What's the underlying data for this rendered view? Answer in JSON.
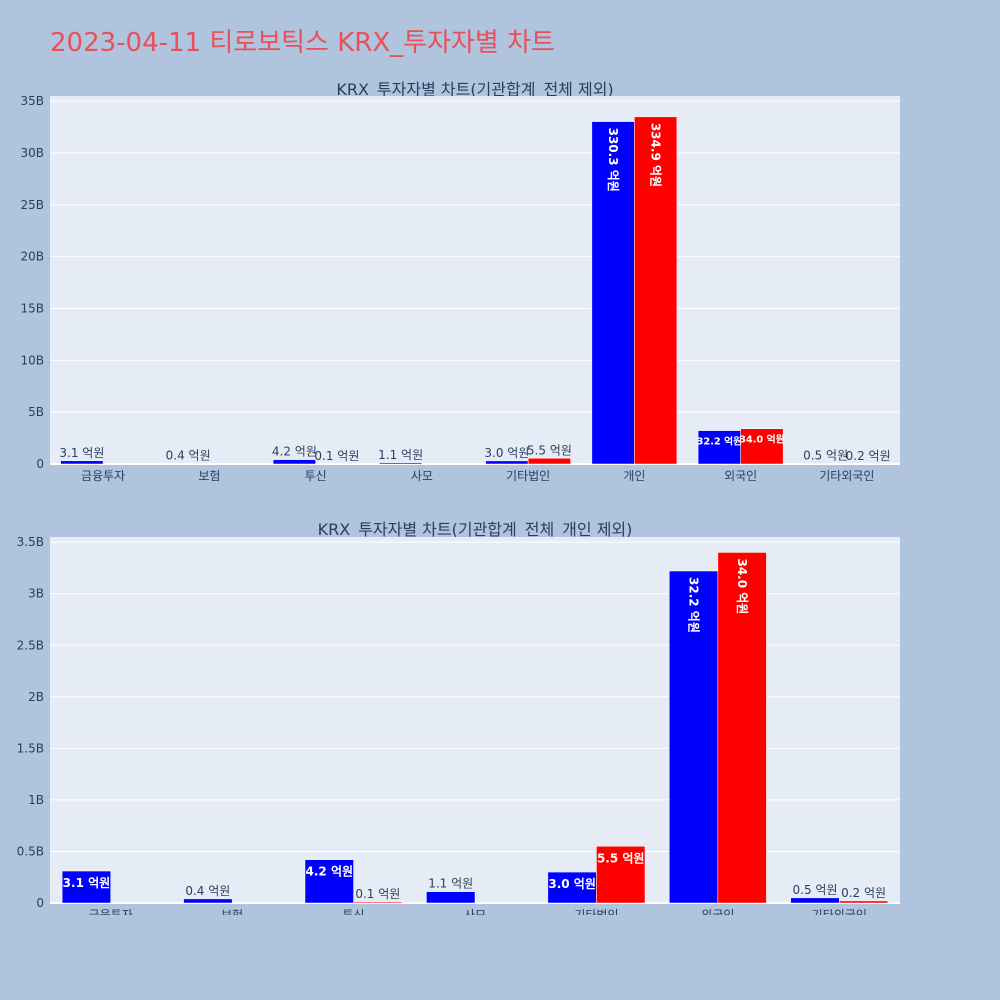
{
  "page_title": "2023-04-11 티로보틱스 KRX_투자자별 차트",
  "colors": {
    "buy": "#0000ff",
    "sell": "#ff0000",
    "plot_bg": "#e5ecf6",
    "page_bg": "#b0c4de",
    "title": "#e8505b"
  },
  "chart_data": [
    {
      "type": "bar",
      "title": "KRX_투자자별 차트(기관합계_전체 제외)",
      "categories": [
        "금융투자",
        "보험",
        "투신",
        "사모",
        "기타법인",
        "개인",
        "외국인",
        "기타외국인"
      ],
      "series": [
        {
          "values": [
            310000000,
            40000000,
            420000000,
            110000000,
            300000000,
            33030000000,
            3220000000,
            50000000
          ],
          "labels": [
            "3.1 억원",
            "0.4 억원",
            "4.2 억원",
            "1.1 억원",
            "3.0 억원",
            "330.3 억원",
            "32.2 억원",
            "0.5 억원"
          ]
        },
        {
          "values": [
            0,
            0,
            10000000,
            0,
            550000000,
            33490000000,
            3400000000,
            20000000
          ],
          "labels": [
            "",
            "",
            "0.1 억원",
            "",
            "5.5 억원",
            "334.9 억원",
            "34.0 억원",
            "0.2 억원"
          ]
        }
      ],
      "ylim": [
        0,
        35500000000
      ],
      "yticks": [
        0,
        5000000000,
        10000000000,
        15000000000,
        20000000000,
        25000000000,
        30000000000,
        35000000000
      ],
      "ytick_labels": [
        "0",
        "5B",
        "10B",
        "15B",
        "20B",
        "25B",
        "30B",
        "35B"
      ],
      "grid": true
    },
    {
      "type": "bar",
      "title": "KRX_투자자별 차트(기관합계_전체_개인 제외)",
      "categories": [
        "금융투자",
        "보험",
        "투신",
        "사모",
        "기타법인",
        "외국인",
        "기타외국인"
      ],
      "series": [
        {
          "values": [
            310000000,
            40000000,
            420000000,
            110000000,
            300000000,
            3220000000,
            50000000
          ],
          "labels": [
            "3.1 억원",
            "0.4 억원",
            "4.2 억원",
            "1.1 억원",
            "3.0 억원",
            "32.2 억원",
            "0.5 억원"
          ]
        },
        {
          "values": [
            0,
            0,
            10000000,
            0,
            550000000,
            3400000000,
            20000000
          ],
          "labels": [
            "",
            "",
            "0.1 억원",
            "",
            "5.5 억원",
            "34.0 억원",
            "0.2 억원"
          ]
        }
      ],
      "ylim": [
        0,
        3550000000
      ],
      "yticks": [
        0,
        500000000,
        1000000000,
        1500000000,
        2000000000,
        2500000000,
        3000000000,
        3500000000
      ],
      "ytick_labels": [
        "0",
        "0.5B",
        "1B",
        "1.5B",
        "2B",
        "2.5B",
        "3B",
        "3.5B"
      ],
      "grid": true
    }
  ]
}
